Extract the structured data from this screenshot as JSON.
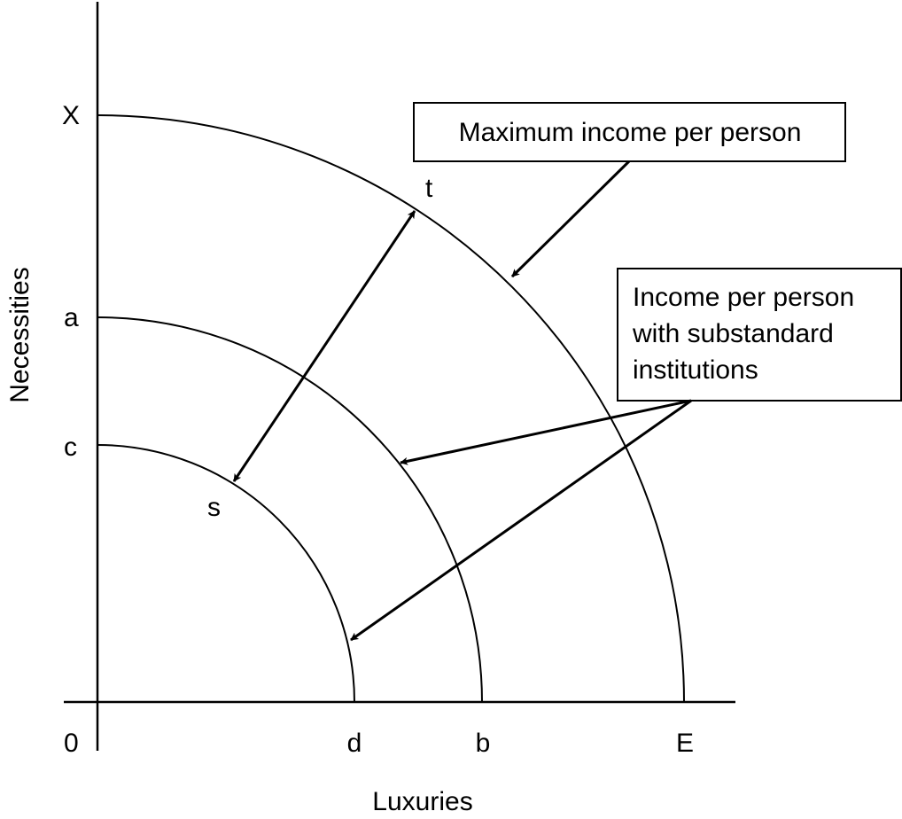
{
  "axes": {
    "y_title": "Necessities",
    "x_title": "Luxuries",
    "origin_label": "0",
    "y_ticks": [
      "X",
      "a",
      "c"
    ],
    "x_ticks": [
      "d",
      "b",
      "E"
    ]
  },
  "curves": [
    {
      "name": "outer",
      "y_label": "X",
      "x_label": "E"
    },
    {
      "name": "middle",
      "y_label": "a",
      "x_label": "b"
    },
    {
      "name": "inner",
      "y_label": "c",
      "x_label": "d"
    }
  ],
  "points": {
    "t": "t",
    "s": "s"
  },
  "callouts": {
    "maximum": "Maximum income per person",
    "substandard": [
      "Income per person",
      "with substandard",
      "institutions"
    ]
  },
  "colors": {
    "ink": "#000000",
    "background": "#ffffff"
  }
}
